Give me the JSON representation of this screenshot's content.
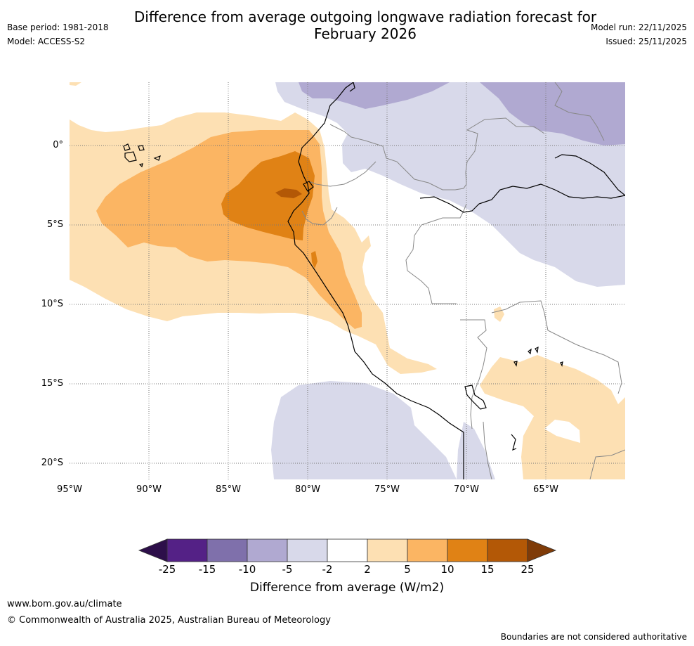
{
  "header": {
    "title_line1": "Difference from average outgoing longwave radiation forecast for",
    "title_line2": "February 2026",
    "base_period": "Base period: 1981-2018",
    "model": "Model: ACCESS-S2",
    "model_run": "Model run: 22/11/2025",
    "issued": "Issued: 25/11/2025"
  },
  "map": {
    "lat_labels": [
      "0°",
      "5°S",
      "10°S",
      "15°S",
      "20°S"
    ],
    "lon_labels": [
      "95°W",
      "90°W",
      "85°W",
      "80°W",
      "75°W",
      "70°W",
      "65°W"
    ],
    "colors": {
      "m25_below": "#2d0f4a",
      "m25_m15": "#542186",
      "m15_m10": "#7f70ab",
      "m10_m5": "#b0a9d1",
      "m5_m2": "#d8d9ea",
      "m2_p2": "#ffffff",
      "p2_p5": "#fde0b3",
      "p5_p10": "#fbb563",
      "p10_p15": "#e08215",
      "p15_p25": "#b35806",
      "p25_above": "#7f3b08"
    }
  },
  "colorbar": {
    "title": "Difference from average (W/m2)",
    "tick_labels": [
      "-25",
      "-15",
      "-10",
      "-5",
      "-2",
      "2",
      "5",
      "10",
      "15",
      "25"
    ]
  },
  "footer": {
    "url": "www.bom.gov.au/climate",
    "copyright": "© Commonwealth of Australia 2025, Australian Bureau of Meteorology",
    "disclaimer": "Boundaries are not considered authoritative"
  }
}
